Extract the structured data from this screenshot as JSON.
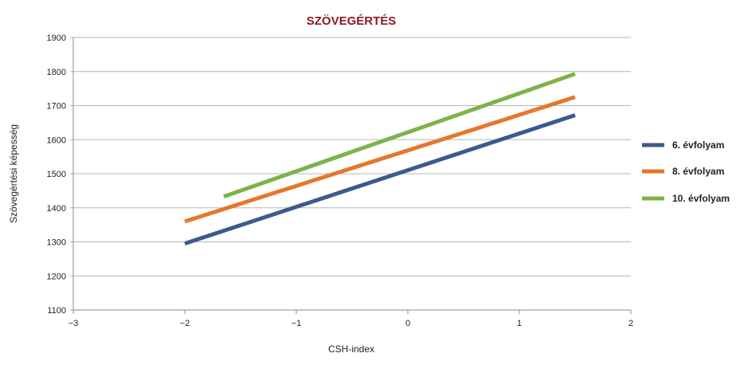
{
  "chart_data": {
    "type": "line",
    "title": "SZÖVEGÉRTÉS",
    "xlabel": "CSH-index",
    "ylabel": "Szövegértési képesség",
    "xlim": [
      -3,
      2
    ],
    "ylim": [
      1100,
      1900
    ],
    "x_ticks": [
      -3,
      -2,
      -1,
      0,
      1,
      2
    ],
    "x_tick_labels": [
      "−3",
      "−2",
      "−1",
      "0",
      "1",
      "2"
    ],
    "y_ticks": [
      1100,
      1200,
      1300,
      1400,
      1500,
      1600,
      1700,
      1800,
      1900
    ],
    "y_tick_labels": [
      "1100",
      "1200",
      "1300",
      "1400",
      "1500",
      "1600",
      "1700",
      "1800",
      "1900"
    ],
    "grid": "horizontal",
    "legend_position": "right",
    "series": [
      {
        "name": "6. évfolyam",
        "color": "#3d5a8c",
        "x": [
          -2.0,
          1.5
        ],
        "y": [
          1295,
          1672
        ]
      },
      {
        "name": "8. évfolyam",
        "color": "#e6772e",
        "x": [
          -2.0,
          1.5
        ],
        "y": [
          1360,
          1725
        ]
      },
      {
        "name": "10. évfolyam",
        "color": "#7fb24a",
        "x": [
          -1.65,
          1.5
        ],
        "y": [
          1433,
          1793
        ]
      }
    ],
    "colors": {
      "title": "#8b1a2b",
      "grid": "#b5b5b5",
      "axis": "#888888"
    }
  }
}
